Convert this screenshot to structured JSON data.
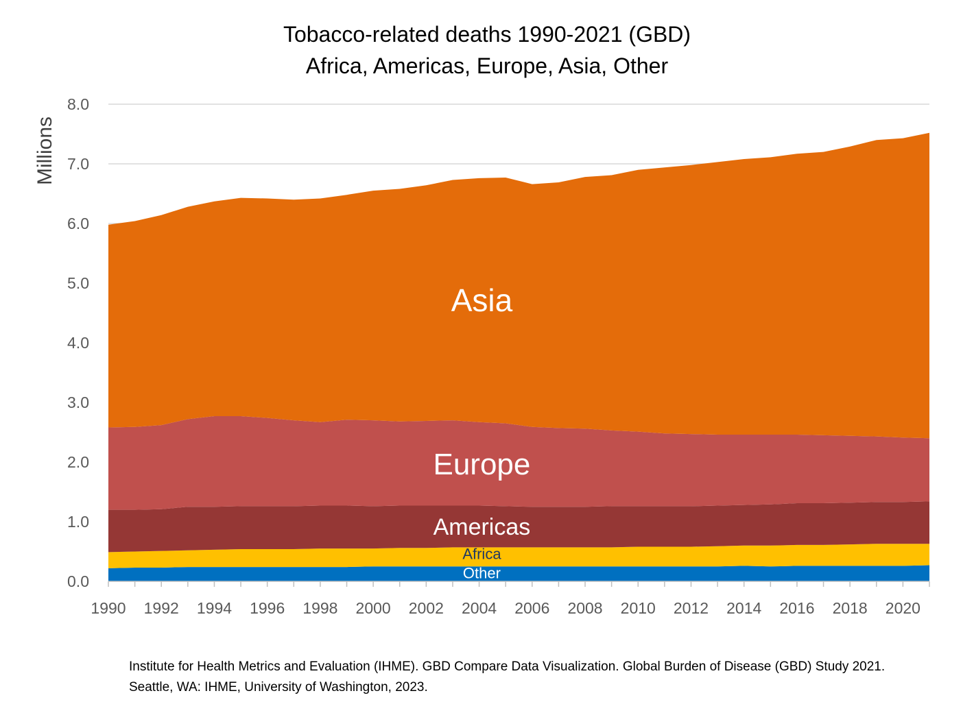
{
  "title_line1": "Tobacco-related deaths 1990-2021 (GBD)",
  "title_line2": "Africa, Americas, Europe, Asia, Other",
  "source_note": "Institute for Health Metrics and Evaluation (IHME). GBD Compare Data Visualization. Global Burden of Disease (GBD) Study 2021. Seattle, WA: IHME, University of Washington, 2023.",
  "chart_data": {
    "type": "area",
    "stacked": true,
    "title": "Tobacco-related deaths 1990-2021 (GBD)",
    "subtitle": "Africa, Americas, Europe, Asia, Other",
    "xlabel": "",
    "ylabel": "Millions",
    "ylim": [
      0,
      8
    ],
    "y_ticks": [
      "0.0",
      "1.0",
      "2.0",
      "3.0",
      "4.0",
      "5.0",
      "6.0",
      "7.0",
      "8.0"
    ],
    "x_tick_labels": [
      "1990",
      "1992",
      "1994",
      "1996",
      "1998",
      "2000",
      "2002",
      "2004",
      "2006",
      "2008",
      "2010",
      "2012",
      "2014",
      "2016",
      "2018",
      "2020"
    ],
    "grid": "horizontal",
    "legend": "none (labels inside areas)",
    "x": [
      1990,
      1991,
      1992,
      1993,
      1994,
      1995,
      1996,
      1997,
      1998,
      1999,
      2000,
      2001,
      2002,
      2003,
      2004,
      2005,
      2006,
      2007,
      2008,
      2009,
      2010,
      2011,
      2012,
      2013,
      2014,
      2015,
      2016,
      2017,
      2018,
      2019,
      2020,
      2021
    ],
    "series": [
      {
        "name": "Other",
        "color": "#0070C0",
        "values": [
          0.22,
          0.23,
          0.23,
          0.24,
          0.24,
          0.24,
          0.24,
          0.24,
          0.24,
          0.24,
          0.25,
          0.25,
          0.25,
          0.25,
          0.25,
          0.25,
          0.25,
          0.25,
          0.25,
          0.25,
          0.25,
          0.25,
          0.25,
          0.25,
          0.26,
          0.25,
          0.26,
          0.26,
          0.26,
          0.26,
          0.26,
          0.27
        ]
      },
      {
        "name": "Africa",
        "color": "#FFC000",
        "values": [
          0.27,
          0.27,
          0.28,
          0.28,
          0.29,
          0.3,
          0.3,
          0.3,
          0.31,
          0.31,
          0.3,
          0.31,
          0.31,
          0.32,
          0.32,
          0.32,
          0.32,
          0.32,
          0.32,
          0.32,
          0.33,
          0.33,
          0.33,
          0.34,
          0.34,
          0.35,
          0.35,
          0.35,
          0.36,
          0.37,
          0.37,
          0.36
        ]
      },
      {
        "name": "Americas",
        "color": "#953735",
        "values": [
          0.71,
          0.7,
          0.7,
          0.73,
          0.72,
          0.72,
          0.72,
          0.72,
          0.72,
          0.72,
          0.71,
          0.71,
          0.71,
          0.7,
          0.7,
          0.69,
          0.68,
          0.68,
          0.68,
          0.69,
          0.68,
          0.68,
          0.68,
          0.68,
          0.68,
          0.69,
          0.7,
          0.7,
          0.7,
          0.7,
          0.7,
          0.71
        ]
      },
      {
        "name": "Europe",
        "color": "#C0504D",
        "values": [
          1.38,
          1.39,
          1.41,
          1.47,
          1.52,
          1.51,
          1.48,
          1.44,
          1.4,
          1.44,
          1.44,
          1.41,
          1.42,
          1.43,
          1.4,
          1.39,
          1.34,
          1.32,
          1.31,
          1.27,
          1.25,
          1.22,
          1.21,
          1.19,
          1.18,
          1.17,
          1.15,
          1.14,
          1.12,
          1.1,
          1.08,
          1.06
        ]
      },
      {
        "name": "Asia",
        "color": "#E46C0A",
        "values": [
          3.4,
          3.45,
          3.52,
          3.56,
          3.6,
          3.66,
          3.68,
          3.7,
          3.75,
          3.77,
          3.85,
          3.9,
          3.95,
          4.03,
          4.09,
          4.12,
          4.07,
          4.12,
          4.22,
          4.28,
          4.39,
          4.46,
          4.51,
          4.57,
          4.62,
          4.65,
          4.71,
          4.75,
          4.85,
          4.97,
          5.02,
          5.12
        ]
      }
    ],
    "area_labels": [
      {
        "series": "Asia",
        "text": "Asia",
        "color": "#FFFFFF"
      },
      {
        "series": "Europe",
        "text": "Europe",
        "color": "#FFFFFF"
      },
      {
        "series": "Americas",
        "text": "Americas",
        "color": "#FFFFFF"
      },
      {
        "series": "Africa",
        "text": "Africa",
        "color": "#1F3864"
      },
      {
        "series": "Other",
        "text": "Other",
        "color": "#FFFFFF"
      }
    ],
    "gridline_color": "#D9D9D9",
    "tick_label_color": "#595959"
  }
}
